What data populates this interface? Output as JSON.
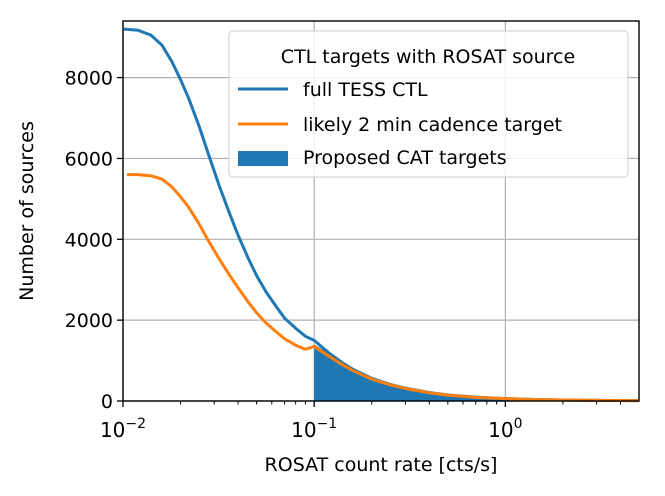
{
  "chart_data": {
    "type": "line",
    "xscale": "log",
    "xlim": [
      0.01,
      5.0
    ],
    "ylim": [
      0,
      9400
    ],
    "grid": true,
    "xlabel": "ROSAT count rate [cts/s]",
    "ylabel": "Number of sources",
    "x_major_ticks": [
      {
        "value": 0.01,
        "base": "10",
        "exp": "−2"
      },
      {
        "value": 0.1,
        "base": "10",
        "exp": "−1"
      },
      {
        "value": 1.0,
        "base": "10",
        "exp": "0"
      }
    ],
    "y_ticks": [
      {
        "value": 0,
        "label": "0"
      },
      {
        "value": 2000,
        "label": "2000"
      },
      {
        "value": 4000,
        "label": "4000"
      },
      {
        "value": 6000,
        "label": "6000"
      },
      {
        "value": 8000,
        "label": "8000"
      }
    ],
    "legend": {
      "title": "CTL targets with ROSAT source",
      "position": "top-right"
    },
    "series": [
      {
        "name": "full TESS CTL",
        "kind": "line",
        "color": "#1f77b4",
        "x": [
          0.0101,
          0.012,
          0.014,
          0.016,
          0.018,
          0.02,
          0.022,
          0.025,
          0.028,
          0.032,
          0.036,
          0.04,
          0.045,
          0.05,
          0.056,
          0.063,
          0.07,
          0.08,
          0.09,
          0.1,
          0.12,
          0.14,
          0.16,
          0.2,
          0.25,
          0.3,
          0.4,
          0.5,
          0.7,
          1.0,
          1.5,
          2.0,
          3.0,
          5.0
        ],
        "y": [
          9200,
          9170,
          9050,
          8800,
          8400,
          7950,
          7500,
          6800,
          6100,
          5300,
          4650,
          4100,
          3550,
          3100,
          2700,
          2350,
          2050,
          1800,
          1600,
          1500,
          1180,
          950,
          780,
          560,
          410,
          320,
          210,
          150,
          95,
          60,
          35,
          25,
          15,
          8
        ]
      },
      {
        "name": "likely 2 min cadence target",
        "kind": "line",
        "color": "#ff7f0e",
        "x": [
          0.0105,
          0.012,
          0.014,
          0.016,
          0.018,
          0.02,
          0.022,
          0.025,
          0.028,
          0.032,
          0.036,
          0.04,
          0.045,
          0.05,
          0.056,
          0.063,
          0.07,
          0.08,
          0.09,
          0.1,
          0.12,
          0.14,
          0.16,
          0.2,
          0.25,
          0.3,
          0.4,
          0.5,
          0.7,
          1.0,
          1.5,
          2.0,
          3.0,
          5.0
        ],
        "y": [
          5600,
          5600,
          5570,
          5490,
          5300,
          5050,
          4800,
          4380,
          3960,
          3500,
          3120,
          2800,
          2460,
          2180,
          1930,
          1720,
          1540,
          1380,
          1280,
          1350,
          1100,
          900,
          750,
          540,
          400,
          310,
          205,
          145,
          90,
          58,
          34,
          24,
          14,
          8
        ]
      },
      {
        "name": "Proposed CAT targets",
        "kind": "fill",
        "color": "#1f77b4",
        "x": [
          0.1,
          0.11,
          0.12,
          0.14,
          0.16,
          0.2,
          0.25,
          0.3,
          0.4,
          0.5,
          0.7,
          1.0,
          1.5,
          2.0,
          3.0,
          5.0
        ],
        "y": [
          1400,
          1280,
          1170,
          950,
          780,
          560,
          410,
          320,
          210,
          150,
          95,
          60,
          35,
          25,
          15,
          8
        ]
      }
    ]
  }
}
